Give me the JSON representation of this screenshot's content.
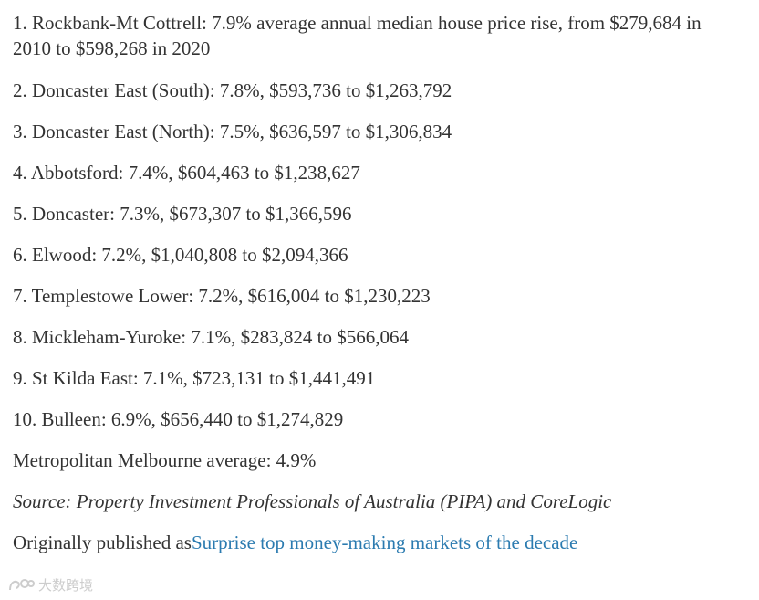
{
  "list": {
    "items": [
      "1. Rockbank-Mt Cottrell: 7.9% average annual median house price rise, from $279,684 in 2010 to $598,268 in 2020",
      "2. Doncaster East (South): 7.8%, $593,736 to $1,263,792",
      "3. Doncaster East (North): 7.5%, $636,597 to $1,306,834",
      "4. Abbotsford: 7.4%, $604,463 to $1,238,627",
      "5. Doncaster: 7.3%, $673,307 to $1,366,596",
      "6. Elwood: 7.2%, $1,040,808 to $2,094,366",
      "7. Templestowe Lower: 7.2%, $616,004 to $1,230,223",
      "8. Mickleham-Yuroke: 7.1%, $283,824 to $566,064",
      "9. St Kilda East: 7.1%, $723,131 to $1,441,491",
      "10. Bulleen: 6.9%, $656,440 to $1,274,829"
    ]
  },
  "average_text": "Metropolitan Melbourne average: 4.9%",
  "source_text": "Source: Property Investment Professionals of Australia (PIPA) and CoreLogic",
  "published": {
    "prefix": "Originally published as",
    "link_text": "Surprise top money-making markets of the decade"
  },
  "watermark": {
    "text": "大数跨境",
    "icon": "watermark-logo-icon"
  },
  "colors": {
    "text": "#333333",
    "link": "#2b7bb0",
    "watermark": "#c8c8c8"
  }
}
